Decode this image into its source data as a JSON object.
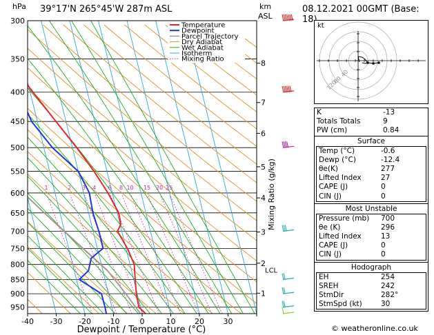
{
  "header": {
    "location": "39°17'N  265°45'W  287m  ASL",
    "datetime": "08.12.2021  00GMT  (Base: 18)",
    "hpa_label": "hPa",
    "km_label": "km",
    "asl_label": "ASL",
    "mixing_ratio_label": "Mixing Ratio (g/kg)",
    "x_axis_label": "Dewpoint / Temperature (°C)",
    "copyright": "© weatheronline.co.uk"
  },
  "legend": [
    {
      "name": "Temperature",
      "color": "#e8252a",
      "style": "solid",
      "width": 2
    },
    {
      "name": "Dewpoint",
      "color": "#2233dd",
      "style": "solid",
      "width": 2
    },
    {
      "name": "Parcel Trajectory",
      "color": "#999999",
      "style": "solid",
      "width": 1.5
    },
    {
      "name": "Dry Adiabat",
      "color": "#e09020",
      "style": "solid",
      "width": 1
    },
    {
      "name": "Wet Adiabat",
      "color": "#22aa22",
      "style": "solid",
      "width": 1
    },
    {
      "name": "Isotherm",
      "color": "#2aa8d8",
      "style": "solid",
      "width": 1
    },
    {
      "name": "Mixing Ratio",
      "color": "#cc22aa",
      "style": "dotted",
      "width": 1
    }
  ],
  "chart_data": {
    "type": "line",
    "pressure_levels": [
      300,
      350,
      400,
      450,
      500,
      550,
      600,
      650,
      700,
      750,
      800,
      850,
      900,
      950
    ],
    "temperature_ticks": [
      -40,
      -30,
      -20,
      -10,
      0,
      10,
      20,
      30
    ],
    "xlim": [
      -40,
      40
    ],
    "ylim_hpa": [
      300,
      975
    ],
    "km_ticks": [
      {
        "label": "8",
        "p": 356
      },
      {
        "label": "7",
        "p": 417
      },
      {
        "label": "6",
        "p": 472
      },
      {
        "label": "5",
        "p": 540
      },
      {
        "label": "4",
        "p": 612
      },
      {
        "label": "3",
        "p": 702
      },
      {
        "label": "2",
        "p": 796
      },
      {
        "label": "1",
        "p": 898
      }
    ],
    "lcl": {
      "label": "LCL",
      "p": 818
    },
    "mixing_ratio_values": [
      "1",
      "2",
      "3",
      "4",
      "6",
      "8",
      "10",
      "15",
      "20",
      "25"
    ],
    "temperature": [
      [
        975,
        1.2
      ],
      [
        950,
        -0.6
      ],
      [
        900,
        -0.3
      ],
      [
        850,
        0.5
      ],
      [
        800,
        1.5
      ],
      [
        750,
        0.5
      ],
      [
        700,
        -1.5
      ],
      [
        680,
        0.3
      ],
      [
        650,
        0.5
      ],
      [
        600,
        -1.5
      ],
      [
        550,
        -4.5
      ],
      [
        500,
        -8.5
      ],
      [
        450,
        -13.5
      ],
      [
        400,
        -19
      ],
      [
        350,
        -25
      ],
      [
        300,
        -34
      ]
    ],
    "dewpoint": [
      [
        975,
        -12.5
      ],
      [
        950,
        -12.4
      ],
      [
        900,
        -12.5
      ],
      [
        850,
        -19
      ],
      [
        820,
        -15
      ],
      [
        780,
        -13
      ],
      [
        750,
        -8
      ],
      [
        700,
        -8
      ],
      [
        650,
        -8.5
      ],
      [
        600,
        -8
      ],
      [
        550,
        -10
      ],
      [
        500,
        -17
      ],
      [
        450,
        -22
      ],
      [
        400,
        -24
      ],
      [
        350,
        -29
      ],
      [
        300,
        -38
      ]
    ],
    "parcel": [
      [
        975,
        -0.6
      ],
      [
        900,
        -4
      ],
      [
        818,
        -8.5
      ],
      [
        750,
        -15
      ],
      [
        700,
        -20
      ],
      [
        650,
        -25.5
      ],
      [
        600,
        -31
      ],
      [
        550,
        -36.5
      ],
      [
        500,
        -43
      ],
      [
        450,
        -50
      ],
      [
        400,
        -58
      ],
      [
        350,
        -66
      ],
      [
        300,
        -75
      ]
    ],
    "wind_barbs": [
      {
        "p": 300,
        "color": "#dd2222",
        "dir": 270,
        "speed": 75
      },
      {
        "p": 400,
        "color": "#dd2222",
        "dir": 270,
        "speed": 60
      },
      {
        "p": 500,
        "color": "#aa2299",
        "dir": 270,
        "speed": 40
      },
      {
        "p": 700,
        "color": "#22aaaa",
        "dir": 260,
        "speed": 25
      },
      {
        "p": 850,
        "color": "#22aaaa",
        "dir": 200,
        "speed": 20
      },
      {
        "p": 900,
        "color": "#22aaaa",
        "dir": 180,
        "speed": 15
      },
      {
        "p": 950,
        "color": "#22aaaa",
        "dir": 170,
        "speed": 15
      },
      {
        "p": 975,
        "color": "#88cc22",
        "dir": 160,
        "speed": 10
      }
    ]
  },
  "hodograph": {
    "unit_label": "kt",
    "ring_labels": [
      "120",
      "80",
      "40"
    ]
  },
  "indices": {
    "rows": [
      {
        "label": "K",
        "value": "-13"
      },
      {
        "label": "Totals Totals",
        "value": "9"
      },
      {
        "label": "PW (cm)",
        "value": "0.84"
      }
    ]
  },
  "surface": {
    "title": "Surface",
    "rows": [
      {
        "label": "Temp (°C)",
        "value": "-0.6"
      },
      {
        "label": "Dewp (°C)",
        "value": "-12.4"
      },
      {
        "label": "θe(K)",
        "value": "277"
      },
      {
        "label": "Lifted Index",
        "value": "27"
      },
      {
        "label": "CAPE (J)",
        "value": "0"
      },
      {
        "label": "CIN (J)",
        "value": "0"
      }
    ]
  },
  "most_unstable": {
    "title": "Most Unstable",
    "rows": [
      {
        "label": "Pressure (mb)",
        "value": "700"
      },
      {
        "label": "θe (K)",
        "value": "296"
      },
      {
        "label": "Lifted Index",
        "value": "13"
      },
      {
        "label": "CAPE (J)",
        "value": "0"
      },
      {
        "label": "CIN (J)",
        "value": "0"
      }
    ]
  },
  "hodograph_table": {
    "title": "Hodograph",
    "rows": [
      {
        "label": "EH",
        "value": "254"
      },
      {
        "label": "SREH",
        "value": "242"
      },
      {
        "label": "StmDir",
        "value": "282°"
      },
      {
        "label": "StmSpd (kt)",
        "value": "30"
      }
    ]
  }
}
